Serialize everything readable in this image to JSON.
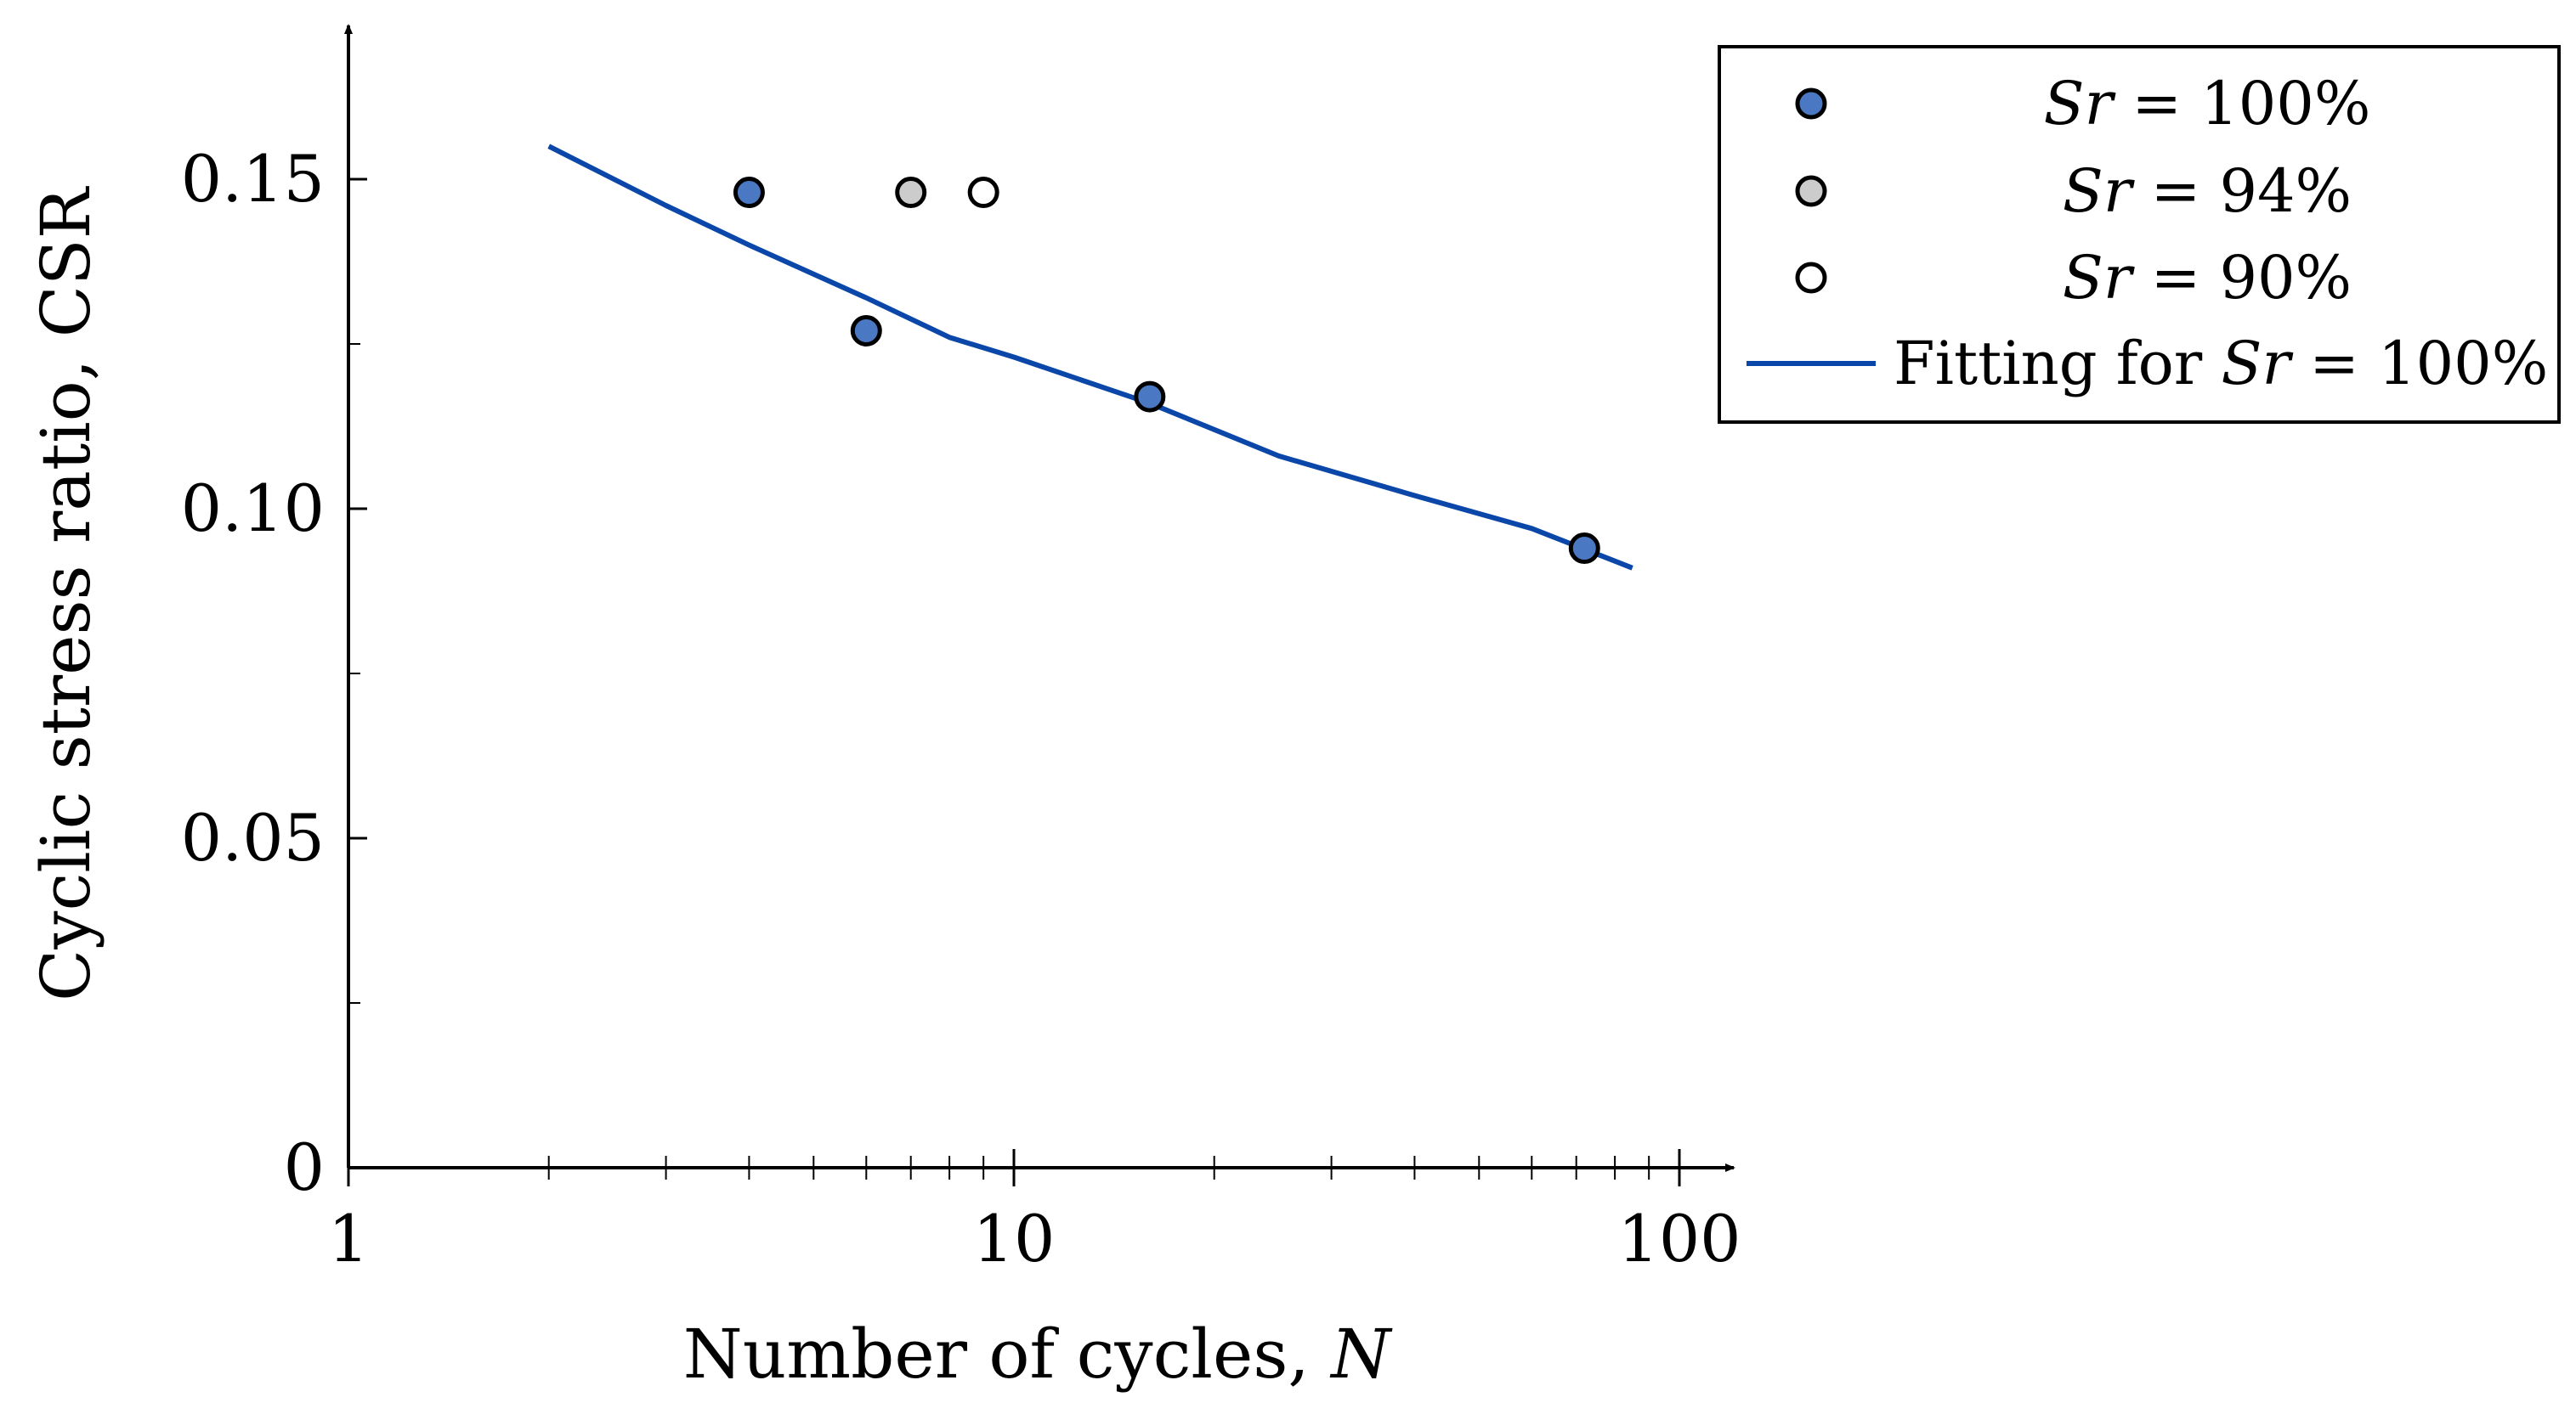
{
  "chart_data": {
    "type": "scatter",
    "title": "",
    "xlabel_prefix": "Number of cycles, ",
    "xlabel_var": "N",
    "ylabel": "Cyclic stress ratio, CSR",
    "xscale": "log",
    "xlim": [
      1,
      100
    ],
    "ylim": [
      0,
      0.17
    ],
    "xticks": [
      1,
      10,
      100
    ],
    "xtick_labels": [
      "1",
      "10",
      "100"
    ],
    "yticks": [
      0,
      0.05,
      0.1,
      0.15
    ],
    "ytick_labels": [
      "0",
      "0.05",
      "0.10",
      "0.15"
    ],
    "grid": false,
    "legend_position": "top-right outside",
    "series": [
      {
        "name": "Sr = 100%",
        "legend_var": "Sr",
        "legend_rest": " = 100%",
        "marker": "circle",
        "color": "#4a78c2",
        "points": [
          [
            4,
            0.148
          ],
          [
            6,
            0.127
          ],
          [
            16,
            0.117
          ],
          [
            72,
            0.094
          ]
        ]
      },
      {
        "name": "Sr = 94%",
        "legend_var": "Sr",
        "legend_rest": " = 94%",
        "marker": "circle",
        "color": "#cccccc",
        "points": [
          [
            7,
            0.148
          ]
        ]
      },
      {
        "name": "Sr = 90%",
        "legend_var": "Sr",
        "legend_rest": " = 90%",
        "marker": "circle",
        "color": "#ffffff",
        "points": [
          [
            9,
            0.148
          ]
        ]
      },
      {
        "name": "Fitting for Sr = 100%",
        "legend_prefix": "Fitting for ",
        "legend_var": "Sr",
        "legend_rest": " = 100%",
        "type": "line",
        "color": "#0b47a8",
        "points": [
          [
            2,
            0.155
          ],
          [
            3,
            0.146
          ],
          [
            4,
            0.14
          ],
          [
            6,
            0.132
          ],
          [
            8,
            0.126
          ],
          [
            10,
            0.123
          ],
          [
            16,
            0.116
          ],
          [
            25,
            0.108
          ],
          [
            40,
            0.102
          ],
          [
            60,
            0.097
          ],
          [
            85,
            0.091
          ]
        ]
      }
    ]
  }
}
